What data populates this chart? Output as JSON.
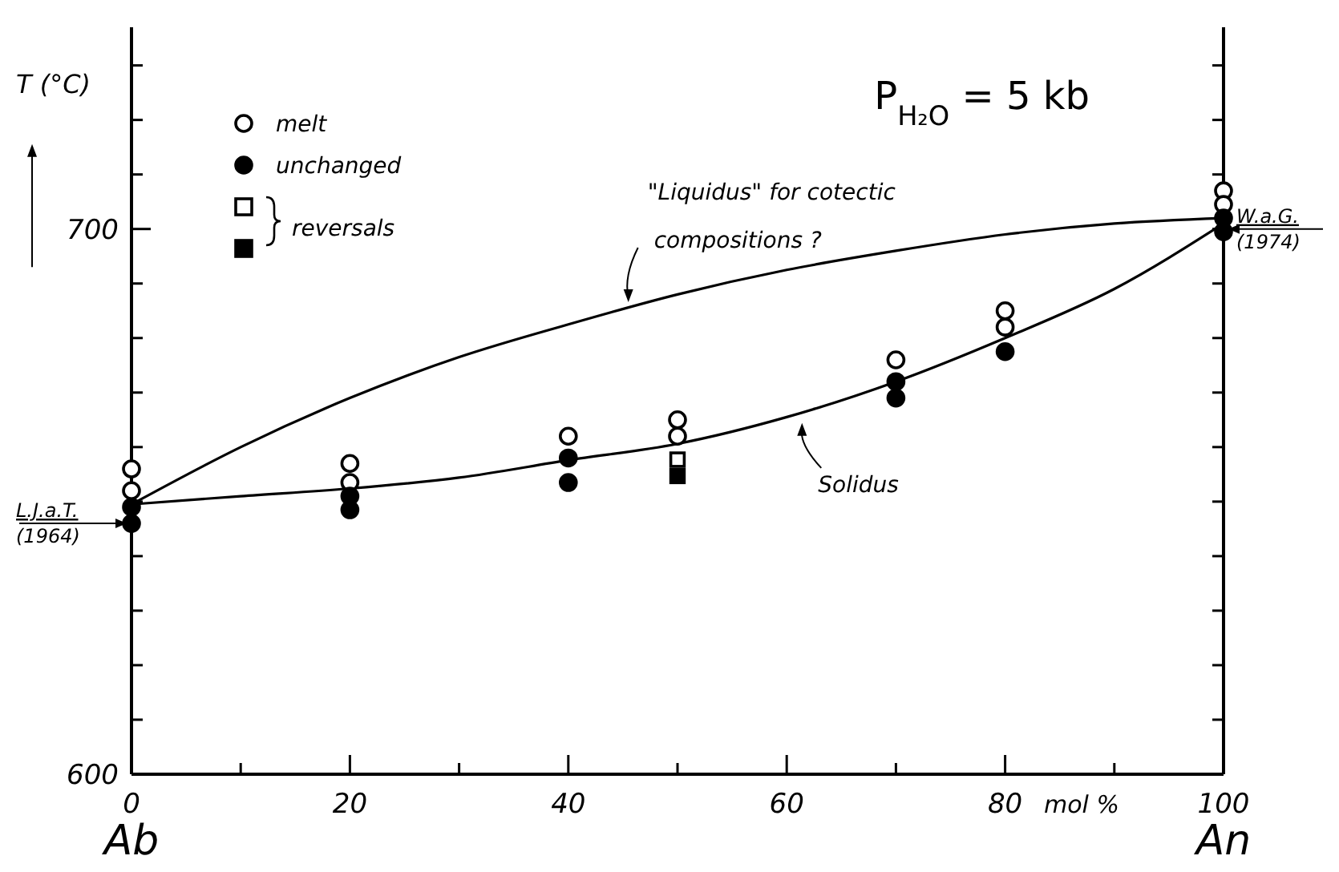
{
  "chart_data": {
    "type": "scatter",
    "xlabel": "mol %",
    "ylabel": "T (°C)",
    "xlim": [
      0,
      100
    ],
    "xticks": [
      0,
      {
        "value": 10,
        "label": null
      },
      20,
      {
        "value": 30,
        "label": null
      },
      40,
      {
        "value": 50,
        "label": null
      },
      60,
      {
        "value": 70,
        "label": null
      },
      80,
      {
        "value": 90,
        "label": null
      },
      100
    ],
    "ylim": [
      600,
      737
    ],
    "yticks": [
      600,
      {
        "value": 610,
        "label": null
      },
      {
        "value": 620,
        "label": null
      },
      {
        "value": 630,
        "label": null
      },
      {
        "value": 640,
        "label": null
      },
      {
        "value": 650,
        "label": null
      },
      {
        "value": 660,
        "label": null
      },
      {
        "value": 670,
        "label": null
      },
      {
        "value": 680,
        "label": null
      },
      {
        "value": 690,
        "label": null
      },
      700,
      {
        "value": 710,
        "label": null
      },
      {
        "value": 720,
        "label": null
      },
      {
        "value": 730,
        "label": null
      }
    ],
    "legend": "top left",
    "grid": false,
    "series": [
      {
        "name": "melt",
        "marker": "circle",
        "color": "#ffffff",
        "x": [
          0,
          0,
          20,
          20,
          40,
          50,
          50,
          70,
          80,
          80,
          100,
          100
        ],
        "values": [
          656,
          652,
          657,
          653.5,
          662,
          665,
          662,
          676,
          685,
          682,
          707,
          704.5
        ]
      },
      {
        "name": "unchanged",
        "marker": "circle",
        "color": "#000000",
        "x": [
          0,
          0,
          20,
          20,
          40,
          40,
          70,
          70,
          80,
          100,
          100
        ],
        "values": [
          649,
          646,
          651,
          648.5,
          658,
          653.5,
          672,
          669,
          677.5,
          702,
          699.5
        ]
      },
      {
        "name": "reversals",
        "marker": "square",
        "color": "#ffffff",
        "x": [
          50
        ],
        "values": [
          657.7
        ]
      },
      {
        "marker": "square",
        "color": "#000000",
        "x": [
          50
        ],
        "values": [
          654.7
        ]
      },
      {
        "type": "line",
        "color": "#000000",
        "marker": "none",
        "line_style": "solid",
        "x": [
          0,
          10,
          20,
          30,
          40,
          50,
          60,
          70,
          80,
          90,
          100
        ],
        "values": [
          649.5,
          651,
          652.4,
          654.4,
          657.6,
          660.6,
          665.5,
          672,
          680,
          689,
          701
        ]
      },
      {
        "type": "line",
        "color": "#000000",
        "marker": "none",
        "line_style": "solid",
        "x": [
          0,
          10,
          20,
          30,
          40,
          50,
          60,
          70,
          80,
          90,
          100
        ],
        "values": [
          649.5,
          660,
          669,
          676.5,
          682.5,
          688,
          692.5,
          696,
          699,
          701,
          702
        ]
      }
    ],
    "annotations": [
      "P$_{H₂O}$ = 5 kb",
      {
        "text": "\"Liquidus\" for cotectic compositions ?",
        "x": 45.5,
        "y": 686
      },
      {
        "text": "Solidus",
        "x": 61.4,
        "y": 665
      },
      {
        "text": "L.J.a.T. (1964)",
        "x": 0,
        "y": 646
      },
      {
        "text": "W.a.G. (1974)",
        "x": 100,
        "y": 700
      },
      "Ab",
      "An"
    ]
  }
}
